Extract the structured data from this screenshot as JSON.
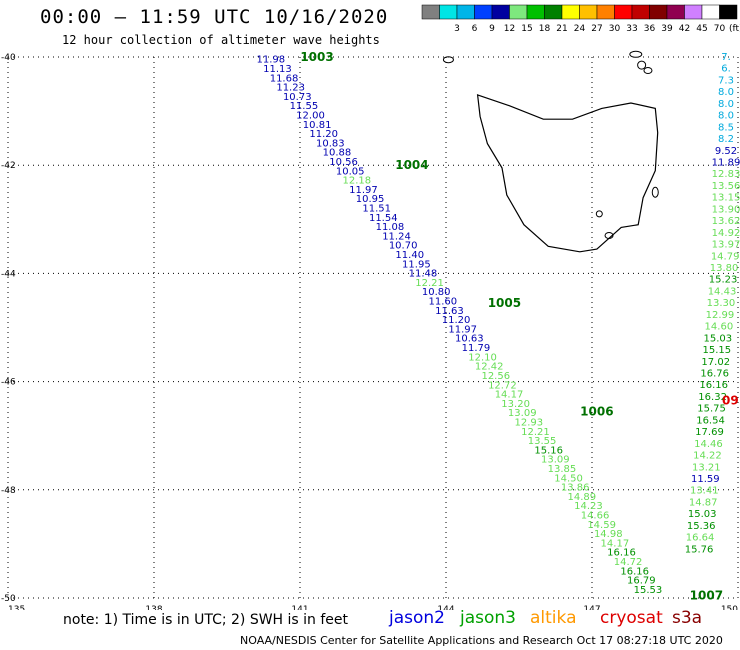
{
  "header": {
    "title": "00:00 – 11:59 UTC 10/16/2020",
    "subtitle": "12 hour collection of altimeter wave heights"
  },
  "legend": {
    "unit": "(ft)",
    "swatches": [
      {
        "label": "",
        "color": "#808080"
      },
      {
        "label": "3",
        "color": "#00e5e5"
      },
      {
        "label": "6",
        "color": "#00b5e8"
      },
      {
        "label": "9",
        "color": "#0040ff"
      },
      {
        "label": "12",
        "color": "#0000a0"
      },
      {
        "label": "15",
        "color": "#7ee87e"
      },
      {
        "label": "18",
        "color": "#00c000"
      },
      {
        "label": "21",
        "color": "#008000"
      },
      {
        "label": "24",
        "color": "#ffff00"
      },
      {
        "label": "27",
        "color": "#ffc000"
      },
      {
        "label": "30",
        "color": "#ff8000"
      },
      {
        "label": "33",
        "color": "#ff0000"
      },
      {
        "label": "36",
        "color": "#c00000"
      },
      {
        "label": "39",
        "color": "#800000"
      },
      {
        "label": "42",
        "color": "#900050"
      },
      {
        "label": "45",
        "color": "#d080ff"
      },
      {
        "label": "70",
        "color": "#ffffff"
      },
      {
        "label": "",
        "color": "#000000"
      }
    ]
  },
  "map": {
    "lat_ticks": [
      "-40",
      "-42",
      "-44",
      "-46",
      "-48",
      "-50"
    ],
    "lon_ticks": [
      "135",
      "138",
      "141",
      "144",
      "147",
      "150"
    ],
    "lon_range": [
      135,
      150
    ],
    "lat_range": [
      -50,
      -40
    ]
  },
  "track1": {
    "values": [
      "11.98",
      "11.13",
      "11.68",
      "11.23",
      "10.73",
      "11.55",
      "12.00",
      "10.81",
      "11.20",
      "10.83",
      "10.88",
      "10.56",
      "10.05",
      "12.18",
      "11.97",
      "10.95",
      "11.51",
      "11.54",
      "11.08",
      "11.24",
      "10.70",
      "11.40",
      "11.95",
      "11.48",
      "12.21",
      "10.80",
      "11.60",
      "11.63",
      "11.20",
      "11.97",
      "10.63",
      "11.79",
      "12.10",
      "12.42",
      "12.56",
      "12.72",
      "14.17",
      "13.20",
      "13.09",
      "12.93",
      "12.21",
      "13.55",
      "15.16",
      "13.09",
      "13.85",
      "14.50",
      "13.86",
      "14.89",
      "14.23",
      "14.66",
      "14.59",
      "14.98",
      "14.17",
      "16.16",
      "14.72",
      "16.16",
      "16.79",
      "15.53"
    ],
    "colors": [
      "jason2",
      "jason2",
      "jason2",
      "jason2",
      "jason2",
      "jason2",
      "jason2",
      "jason2",
      "jason2",
      "jason2",
      "jason2",
      "jason2",
      "jason2",
      "jason3l",
      "jason2",
      "jason2",
      "jason2",
      "jason2",
      "jason2",
      "jason2",
      "jason2",
      "jason2",
      "jason2",
      "jason2",
      "jason3l",
      "jason2",
      "jason2",
      "jason2",
      "jason2",
      "jason2",
      "jason2",
      "jason2",
      "jason3l",
      "jason3l",
      "jason3l",
      "jason3l",
      "jason3l",
      "jason3l",
      "jason3l",
      "jason3l",
      "jason3l",
      "jason3l",
      "jason3",
      "jason3l",
      "jason3l",
      "jason3l",
      "jason3l",
      "jason3l",
      "jason3l",
      "jason3l",
      "jason3l",
      "jason3l",
      "jason3l",
      "jason3",
      "jason3l",
      "jason3",
      "jason3",
      "jason3"
    ],
    "time_markers": [
      "1003",
      "1004",
      "1005",
      "1006",
      "1007"
    ]
  },
  "track2": {
    "values": [
      "7.",
      "6.",
      "7.3",
      "8.0",
      "8.0",
      "8.0",
      "8.5",
      "8.2",
      "9.52",
      "11.89",
      "12.83",
      "13.56",
      "13.15",
      "13.90",
      "13.62",
      "14.92",
      "13.97",
      "14.79",
      "13.80",
      "15.23",
      "14.43",
      "13.30",
      "12.99",
      "14.60",
      "15.03",
      "15.15",
      "17.02",
      "16.76",
      "16.16",
      "16.32",
      "15.75",
      "16.54",
      "17.69",
      "14.46",
      "14.22",
      "13.21",
      "11.59",
      "13.41",
      "14.87",
      "15.03",
      "15.36",
      "16.64",
      "15.76"
    ],
    "colors": [
      "cyan",
      "cyan",
      "cyan",
      "cyan",
      "cyan",
      "cyan",
      "cyan",
      "cyan",
      "blue",
      "jason2",
      "jason3l",
      "jason3l",
      "jason3l",
      "jason3l",
      "jason3l",
      "jason3l",
      "jason3l",
      "jason3l",
      "jason3l",
      "jason3",
      "jason3l",
      "jason3l",
      "jason3l",
      "jason3l",
      "jason3",
      "jason3",
      "jason3",
      "jason3",
      "jason3",
      "jason3",
      "jason3",
      "jason3",
      "jason3",
      "jason3l",
      "jason3l",
      "jason3l",
      "jason2",
      "jason3l",
      "jason3l",
      "jason3",
      "jason3",
      "jason3l",
      "jason3"
    ],
    "time_marker": "09"
  },
  "palette": {
    "jason2": "#0000b0",
    "jason3": "#009000",
    "jason3l": "#66dd55",
    "cyan": "#00aadd",
    "blue": "#0000b0",
    "altika": "#ff9900",
    "cryosat": "#dd0000",
    "s3a": "#880000",
    "marker": "#007000"
  },
  "footer": {
    "note": "note: 1) Time is in UTC; 2) SWH is in feet",
    "satellites": [
      {
        "name": "jason2",
        "color": "#0000dd"
      },
      {
        "name": "jason3",
        "color": "#00a000"
      },
      {
        "name": "altika",
        "color": "#ff9900"
      },
      {
        "name": "cryosat",
        "color": "#dd0000"
      },
      {
        "name": "s3a",
        "color": "#880000"
      }
    ],
    "credit": "NOAA/NESDIS Center for Satellite Applications and Research    Oct 17 08:27:18 UTC 2020"
  }
}
